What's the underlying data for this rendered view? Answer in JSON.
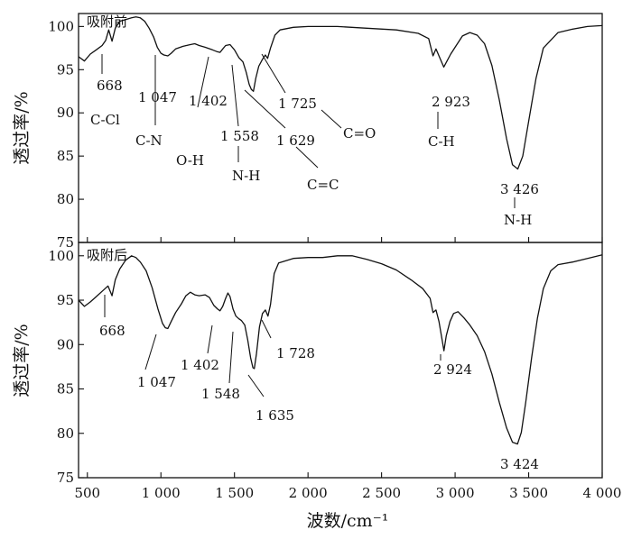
{
  "chart_data": [
    {
      "type": "line",
      "title": "吸附前",
      "ylabel": "透过率/%",
      "xlabel": "",
      "xlim": [
        440,
        4000
      ],
      "ylim": [
        75,
        101.5
      ],
      "xticks": [],
      "xtick_labels": [],
      "yticks": [
        75,
        80,
        85,
        90,
        95,
        100
      ],
      "ytick_labels": [
        "75",
        "80",
        "85",
        "90",
        "95",
        "100"
      ],
      "series": [
        {
          "values": [
            [
              440,
              96.5
            ],
            [
              480,
              96.0
            ],
            [
              520,
              96.8
            ],
            [
              560,
              97.3
            ],
            [
              600,
              97.8
            ],
            [
              625,
              98.4
            ],
            [
              645,
              99.6
            ],
            [
              668,
              98.3
            ],
            [
              690,
              99.8
            ],
            [
              720,
              100.6
            ],
            [
              760,
              100.8
            ],
            [
              800,
              101.0
            ],
            [
              830,
              101.1
            ],
            [
              860,
              101.0
            ],
            [
              890,
              100.6
            ],
            [
              920,
              99.8
            ],
            [
              950,
              98.8
            ],
            [
              975,
              97.6
            ],
            [
              1000,
              96.9
            ],
            [
              1020,
              96.7
            ],
            [
              1047,
              96.6
            ],
            [
              1070,
              96.9
            ],
            [
              1100,
              97.4
            ],
            [
              1150,
              97.7
            ],
            [
              1200,
              97.9
            ],
            [
              1230,
              98.0
            ],
            [
              1260,
              97.8
            ],
            [
              1300,
              97.6
            ],
            [
              1350,
              97.3
            ],
            [
              1380,
              97.1
            ],
            [
              1402,
              97.0
            ],
            [
              1420,
              97.4
            ],
            [
              1440,
              97.8
            ],
            [
              1470,
              97.9
            ],
            [
              1500,
              97.3
            ],
            [
              1530,
              96.4
            ],
            [
              1558,
              95.9
            ],
            [
              1580,
              94.7
            ],
            [
              1600,
              93.3
            ],
            [
              1615,
              92.7
            ],
            [
              1629,
              92.5
            ],
            [
              1645,
              94.0
            ],
            [
              1665,
              95.4
            ],
            [
              1690,
              96.2
            ],
            [
              1710,
              96.7
            ],
            [
              1725,
              96.3
            ],
            [
              1745,
              97.5
            ],
            [
              1775,
              99.0
            ],
            [
              1810,
              99.6
            ],
            [
              1900,
              99.9
            ],
            [
              2000,
              100.0
            ],
            [
              2200,
              100.0
            ],
            [
              2400,
              99.8
            ],
            [
              2600,
              99.6
            ],
            [
              2750,
              99.2
            ],
            [
              2820,
              98.6
            ],
            [
              2850,
              96.6
            ],
            [
              2870,
              97.4
            ],
            [
              2895,
              96.4
            ],
            [
              2923,
              95.3
            ],
            [
              2945,
              96.0
            ],
            [
              2970,
              96.8
            ],
            [
              3000,
              97.6
            ],
            [
              3050,
              98.9
            ],
            [
              3100,
              99.3
            ],
            [
              3150,
              99.0
            ],
            [
              3200,
              98.0
            ],
            [
              3250,
              95.5
            ],
            [
              3300,
              91.5
            ],
            [
              3350,
              87.0
            ],
            [
              3390,
              84.0
            ],
            [
              3426,
              83.5
            ],
            [
              3460,
              85.0
            ],
            [
              3500,
              89.0
            ],
            [
              3550,
              94.0
            ],
            [
              3600,
              97.5
            ],
            [
              3700,
              99.3
            ],
            [
              3800,
              99.7
            ],
            [
              3900,
              100.0
            ],
            [
              4000,
              100.1
            ]
          ]
        }
      ],
      "annotations": [
        {
          "label": "668",
          "x": 668
        },
        {
          "label": "C-Cl",
          "x": 668
        },
        {
          "label": "1 047",
          "x": 1047
        },
        {
          "label": "C-N",
          "x": 1047
        },
        {
          "label": "1 402",
          "x": 1402
        },
        {
          "label": "O-H",
          "x": 1402
        },
        {
          "label": "1 558",
          "x": 1558
        },
        {
          "label": "N-H",
          "x": 1558
        },
        {
          "label": "1 629",
          "x": 1629
        },
        {
          "label": "C=C",
          "x": 1629
        },
        {
          "label": "1 725",
          "x": 1725
        },
        {
          "label": "C=O",
          "x": 1725
        },
        {
          "label": "2 923",
          "x": 2923
        },
        {
          "label": "C-H",
          "x": 2923
        },
        {
          "label": "3 426",
          "x": 3426
        },
        {
          "label": "N-H",
          "x": 3426
        }
      ]
    },
    {
      "type": "line",
      "title": "吸附后",
      "ylabel": "透过率/%",
      "xlabel": "波数/cm⁻¹",
      "xlim": [
        440,
        4000
      ],
      "ylim": [
        75,
        101.5
      ],
      "xticks": [
        500,
        1000,
        1500,
        2000,
        2500,
        3000,
        3500,
        4000
      ],
      "xtick_labels": [
        "500",
        "1 000",
        "1 500",
        "2 000",
        "2 500",
        "3 000",
        "3 500",
        "4 000"
      ],
      "yticks": [
        75,
        80,
        85,
        90,
        95,
        100
      ],
      "ytick_labels": [
        "75",
        "80",
        "85",
        "90",
        "95",
        "100"
      ],
      "series": [
        {
          "values": [
            [
              440,
              95.0
            ],
            [
              480,
              94.3
            ],
            [
              520,
              94.8
            ],
            [
              560,
              95.4
            ],
            [
              600,
              96.0
            ],
            [
              640,
              96.6
            ],
            [
              668,
              95.5
            ],
            [
              690,
              97.3
            ],
            [
              720,
              98.5
            ],
            [
              760,
              99.5
            ],
            [
              800,
              100.0
            ],
            [
              830,
              99.8
            ],
            [
              860,
              99.3
            ],
            [
              900,
              98.3
            ],
            [
              940,
              96.4
            ],
            [
              980,
              94.0
            ],
            [
              1010,
              92.4
            ],
            [
              1030,
              91.9
            ],
            [
              1047,
              91.8
            ],
            [
              1070,
              92.6
            ],
            [
              1100,
              93.6
            ],
            [
              1140,
              94.6
            ],
            [
              1170,
              95.5
            ],
            [
              1200,
              95.9
            ],
            [
              1230,
              95.6
            ],
            [
              1260,
              95.5
            ],
            [
              1300,
              95.6
            ],
            [
              1330,
              95.3
            ],
            [
              1360,
              94.4
            ],
            [
              1385,
              94.0
            ],
            [
              1402,
              93.8
            ],
            [
              1420,
              94.3
            ],
            [
              1440,
              95.2
            ],
            [
              1455,
              95.8
            ],
            [
              1470,
              95.4
            ],
            [
              1490,
              94.0
            ],
            [
              1510,
              93.2
            ],
            [
              1530,
              92.9
            ],
            [
              1548,
              92.7
            ],
            [
              1570,
              92.2
            ],
            [
              1590,
              90.5
            ],
            [
              1610,
              88.5
            ],
            [
              1625,
              87.4
            ],
            [
              1635,
              87.3
            ],
            [
              1650,
              89.0
            ],
            [
              1670,
              92.0
            ],
            [
              1690,
              93.5
            ],
            [
              1710,
              93.9
            ],
            [
              1728,
              93.2
            ],
            [
              1745,
              94.5
            ],
            [
              1770,
              98.0
            ],
            [
              1800,
              99.2
            ],
            [
              1900,
              99.7
            ],
            [
              2000,
              99.8
            ],
            [
              2100,
              99.8
            ],
            [
              2200,
              100.0
            ],
            [
              2300,
              100.0
            ],
            [
              2400,
              99.6
            ],
            [
              2500,
              99.1
            ],
            [
              2600,
              98.4
            ],
            [
              2700,
              97.3
            ],
            [
              2780,
              96.3
            ],
            [
              2830,
              95.2
            ],
            [
              2850,
              93.6
            ],
            [
              2870,
              93.9
            ],
            [
              2890,
              92.6
            ],
            [
              2910,
              90.7
            ],
            [
              2924,
              89.3
            ],
            [
              2940,
              91.0
            ],
            [
              2965,
              92.6
            ],
            [
              2990,
              93.5
            ],
            [
              3020,
              93.7
            ],
            [
              3060,
              93.0
            ],
            [
              3100,
              92.2
            ],
            [
              3150,
              91.0
            ],
            [
              3200,
              89.2
            ],
            [
              3250,
              86.7
            ],
            [
              3300,
              83.5
            ],
            [
              3350,
              80.6
            ],
            [
              3390,
              79.0
            ],
            [
              3424,
              78.8
            ],
            [
              3450,
              80.1
            ],
            [
              3480,
              83.5
            ],
            [
              3520,
              88.5
            ],
            [
              3560,
              93.0
            ],
            [
              3600,
              96.3
            ],
            [
              3650,
              98.3
            ],
            [
              3700,
              99.0
            ],
            [
              3800,
              99.3
            ],
            [
              3900,
              99.7
            ],
            [
              4000,
              100.1
            ]
          ]
        }
      ],
      "annotations": [
        {
          "label": "668",
          "x": 668
        },
        {
          "label": "1 047",
          "x": 1047
        },
        {
          "label": "1 402",
          "x": 1402
        },
        {
          "label": "1 548",
          "x": 1548
        },
        {
          "label": "1 635",
          "x": 1635
        },
        {
          "label": "1 728",
          "x": 1728
        },
        {
          "label": "2 924",
          "x": 2924
        },
        {
          "label": "3 424",
          "x": 3424
        }
      ]
    }
  ]
}
